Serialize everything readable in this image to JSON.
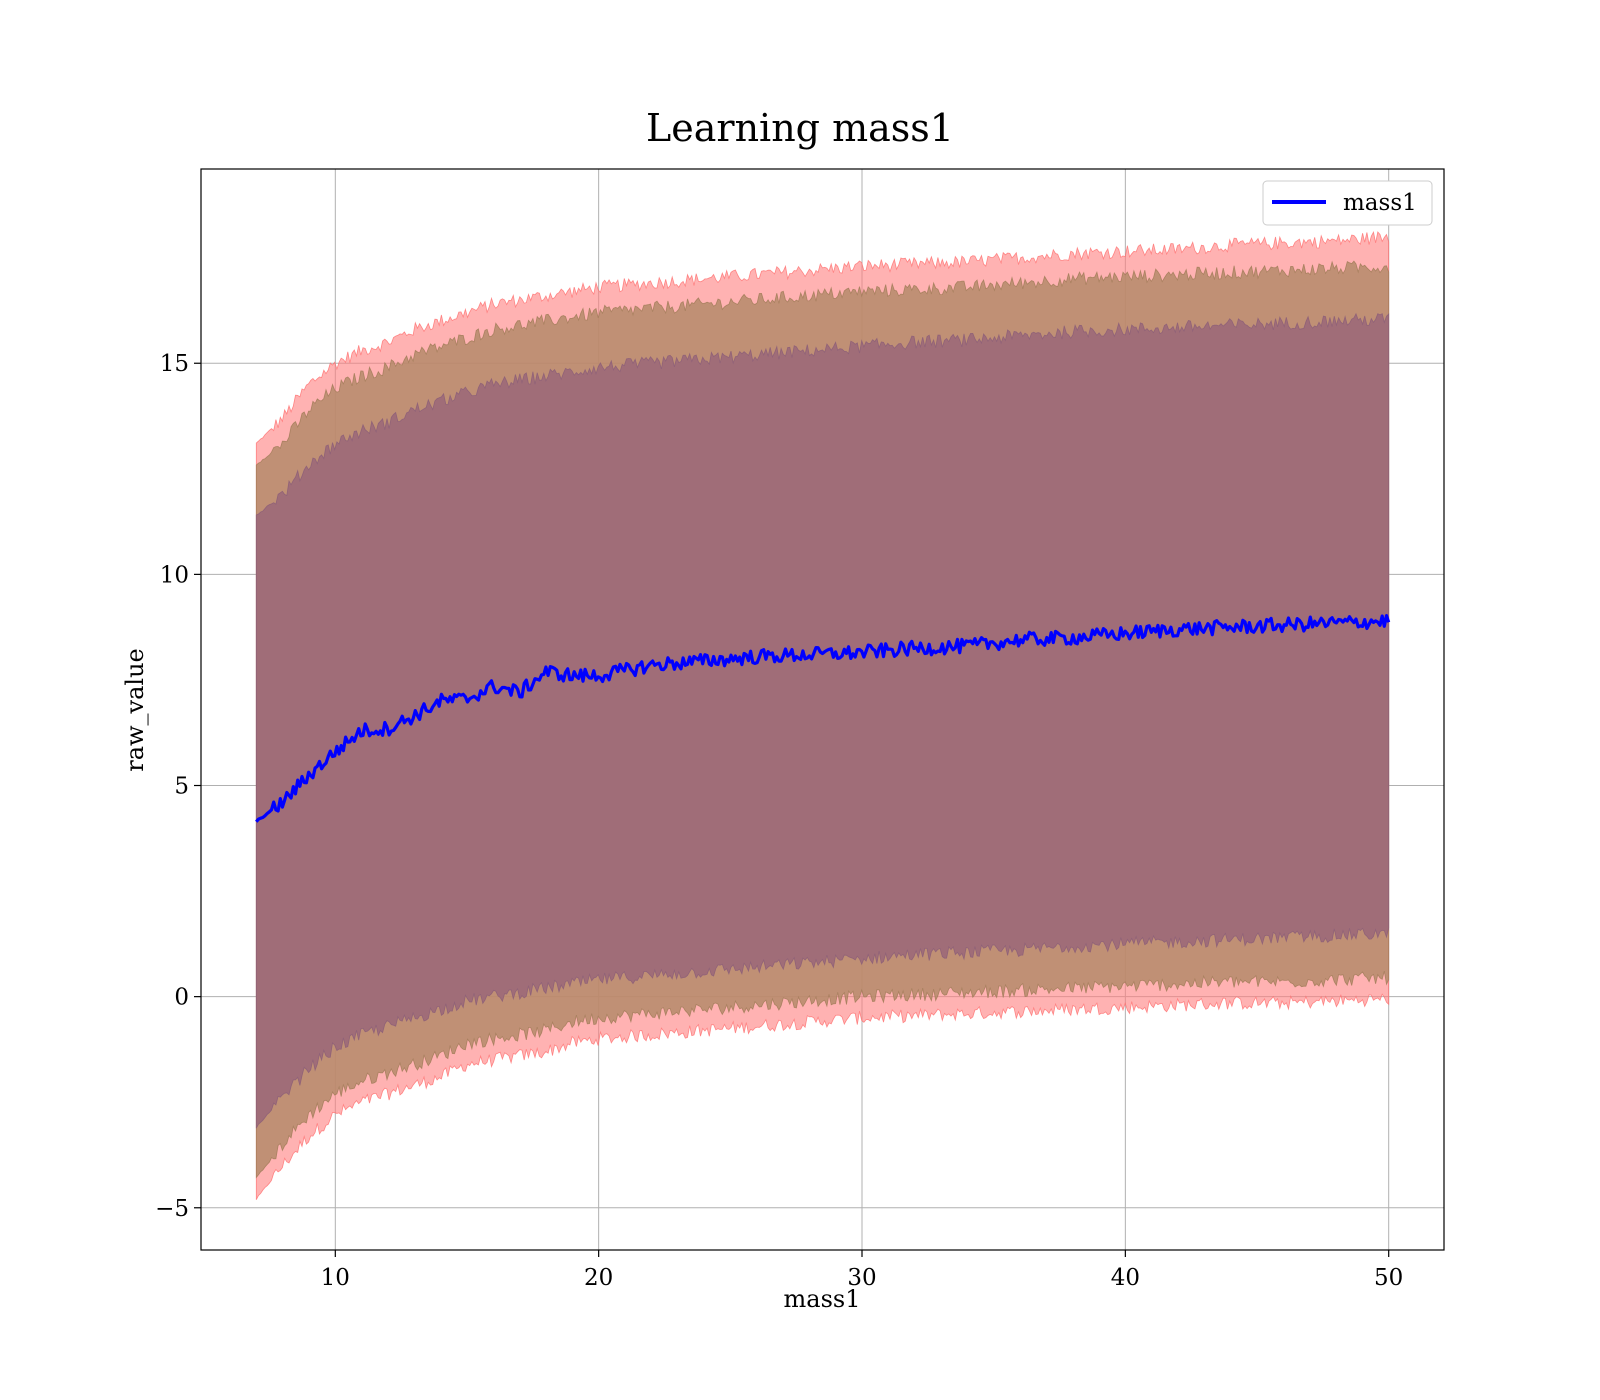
{
  "chart_data": {
    "type": "line",
    "title": "Learning mass1",
    "xlabel": "mass1",
    "ylabel": "raw_value",
    "xlim": [
      4.9,
      52.1
    ],
    "ylim": [
      -6.0,
      19.6
    ],
    "x_ticks": [
      10,
      20,
      30,
      40,
      50
    ],
    "x_tick_labels": [
      "10",
      "20",
      "30",
      "40",
      "50"
    ],
    "y_ticks": [
      -5,
      0,
      5,
      10,
      15
    ],
    "y_tick_labels": [
      "−5",
      "0",
      "5",
      "10",
      "15"
    ],
    "grid": true,
    "legend": {
      "position": "top-right",
      "entries": [
        "mass1"
      ]
    },
    "colors": {
      "line": "#0000ff",
      "band_outer": "#ff7f7f",
      "band_middle": "#b58a6a",
      "band_inner": "#a06d78"
    },
    "x": [
      7,
      8,
      9,
      10,
      11,
      12,
      13,
      14,
      15,
      16,
      17,
      18,
      19,
      20,
      22,
      24,
      26,
      28,
      30,
      32,
      34,
      36,
      38,
      40,
      42,
      44,
      46,
      48,
      50
    ],
    "series": [
      {
        "name": "mass1",
        "values": [
          4.15,
          4.6,
          5.25,
          5.8,
          6.3,
          6.35,
          6.65,
          7.0,
          7.05,
          7.35,
          7.2,
          7.7,
          7.6,
          7.6,
          7.85,
          7.95,
          8.05,
          8.1,
          8.15,
          8.25,
          8.3,
          8.45,
          8.5,
          8.6,
          8.7,
          8.75,
          8.8,
          8.85,
          8.9
        ]
      }
    ],
    "bands": [
      {
        "label": "outer",
        "upper": [
          13.1,
          13.7,
          14.5,
          15.0,
          15.3,
          15.5,
          15.8,
          16.0,
          16.2,
          16.4,
          16.5,
          16.6,
          16.7,
          16.8,
          16.9,
          17.0,
          17.1,
          17.2,
          17.3,
          17.35,
          17.4,
          17.5,
          17.6,
          17.65,
          17.7,
          17.8,
          17.85,
          17.9,
          18.0
        ],
        "lower": [
          -4.8,
          -4.0,
          -3.3,
          -2.8,
          -2.5,
          -2.3,
          -2.1,
          -1.9,
          -1.6,
          -1.5,
          -1.4,
          -1.3,
          -1.1,
          -1.0,
          -0.9,
          -0.8,
          -0.7,
          -0.6,
          -0.5,
          -0.45,
          -0.4,
          -0.35,
          -0.3,
          -0.25,
          -0.2,
          -0.15,
          -0.15,
          -0.1,
          -0.05
        ]
      },
      {
        "label": "middle",
        "upper": [
          12.6,
          13.1,
          13.9,
          14.4,
          14.7,
          14.9,
          15.2,
          15.4,
          15.6,
          15.8,
          15.9,
          16.0,
          16.1,
          16.2,
          16.3,
          16.4,
          16.5,
          16.6,
          16.7,
          16.75,
          16.8,
          16.9,
          17.0,
          17.05,
          17.1,
          17.15,
          17.2,
          17.25,
          17.3
        ],
        "lower": [
          -4.3,
          -3.5,
          -2.8,
          -2.3,
          -2.0,
          -1.8,
          -1.6,
          -1.4,
          -1.1,
          -1.0,
          -0.9,
          -0.8,
          -0.6,
          -0.5,
          -0.4,
          -0.3,
          -0.2,
          -0.1,
          0.0,
          0.05,
          0.1,
          0.15,
          0.2,
          0.25,
          0.3,
          0.35,
          0.35,
          0.4,
          0.45
        ]
      },
      {
        "label": "inner",
        "upper": [
          11.4,
          11.9,
          12.6,
          13.1,
          13.4,
          13.6,
          13.9,
          14.1,
          14.3,
          14.5,
          14.6,
          14.7,
          14.8,
          14.9,
          15.0,
          15.1,
          15.2,
          15.3,
          15.4,
          15.5,
          15.55,
          15.65,
          15.75,
          15.8,
          15.85,
          15.9,
          15.95,
          16.0,
          16.05
        ],
        "lower": [
          -3.1,
          -2.4,
          -1.7,
          -1.2,
          -0.9,
          -0.7,
          -0.5,
          -0.3,
          -0.1,
          0.0,
          0.1,
          0.2,
          0.3,
          0.4,
          0.5,
          0.6,
          0.7,
          0.8,
          0.9,
          1.0,
          1.05,
          1.1,
          1.2,
          1.25,
          1.3,
          1.35,
          1.4,
          1.45,
          1.5
        ]
      }
    ]
  }
}
